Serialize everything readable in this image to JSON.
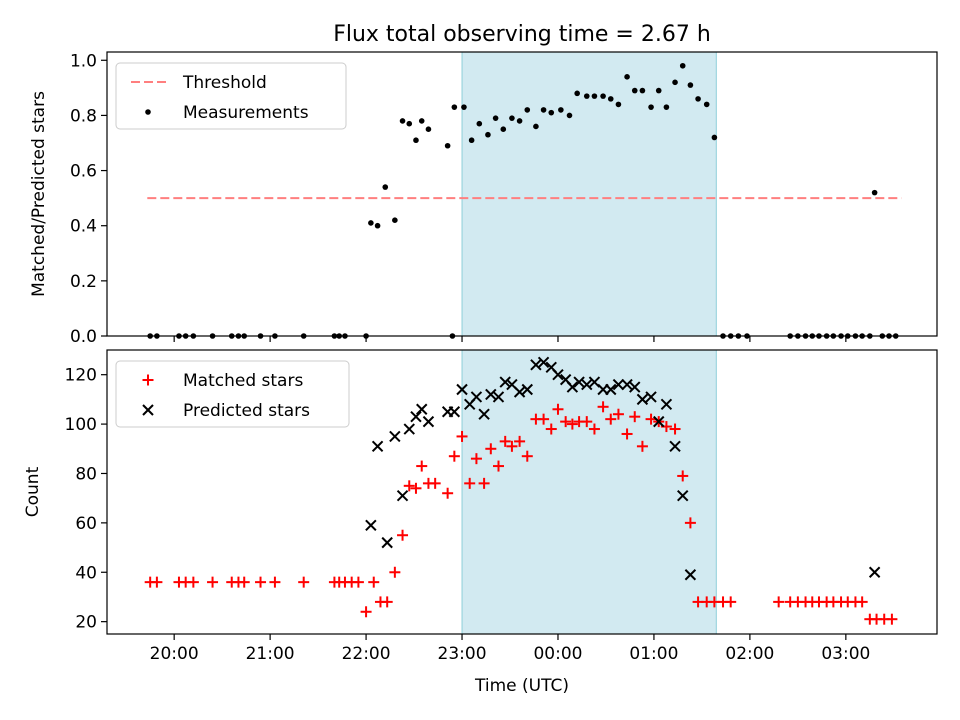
{
  "chart_data": {
    "type": "scatter",
    "title": "Flux total observing time = 2.67 h",
    "xlabel": "Time (UTC)",
    "x_unit": "hours relative to 00:00 UTC",
    "xlim": [
      -4.7,
      3.95
    ],
    "xticks": [
      -4,
      -3,
      -2,
      -1,
      0,
      1,
      2,
      3
    ],
    "xtick_labels": [
      "20:00",
      "21:00",
      "22:00",
      "23:00",
      "00:00",
      "01:00",
      "02:00",
      "03:00"
    ],
    "shaded_span": {
      "from": -1.0,
      "to": 1.65,
      "color": "#add8e6"
    },
    "panels": [
      {
        "ylabel": "Matched/Predicted stars",
        "ylim": [
          0,
          1.03
        ],
        "yticks": [
          0,
          0.2,
          0.4,
          0.6,
          0.8,
          1.0
        ],
        "ytick_labels": [
          "0.0",
          "0.2",
          "0.4",
          "0.6",
          "0.8",
          "1.0"
        ],
        "legend_position": "upper-left",
        "series": [
          {
            "name": "Threshold",
            "kind": "line",
            "style": "dashed",
            "color": "#ff7f7f",
            "x": [
              -4.28,
              3.58
            ],
            "y": [
              0.5,
              0.5
            ]
          },
          {
            "name": "Measurements",
            "kind": "scatter",
            "marker": "dot",
            "color": "#000000",
            "points": [
              [
                -4.25,
                0
              ],
              [
                -4.18,
                0
              ],
              [
                -3.95,
                0
              ],
              [
                -3.88,
                0
              ],
              [
                -3.8,
                0
              ],
              [
                -3.6,
                0
              ],
              [
                -3.4,
                0
              ],
              [
                -3.33,
                0
              ],
              [
                -3.27,
                0
              ],
              [
                -3.1,
                0
              ],
              [
                -2.95,
                0
              ],
              [
                -2.65,
                0
              ],
              [
                -2.33,
                0
              ],
              [
                -2.28,
                0
              ],
              [
                -2.22,
                0
              ],
              [
                -2.0,
                0
              ],
              [
                -1.95,
                0.41
              ],
              [
                -1.88,
                0.4
              ],
              [
                -1.8,
                0.54
              ],
              [
                -1.7,
                0.42
              ],
              [
                -1.62,
                0.78
              ],
              [
                -1.55,
                0.77
              ],
              [
                -1.48,
                0.71
              ],
              [
                -1.42,
                0.78
              ],
              [
                -1.35,
                0.75
              ],
              [
                -1.15,
                0.69
              ],
              [
                -1.08,
                0.83
              ],
              [
                -0.98,
                0.83
              ],
              [
                -0.9,
                0.71
              ],
              [
                -0.82,
                0.77
              ],
              [
                -0.73,
                0.73
              ],
              [
                -0.65,
                0.79
              ],
              [
                -0.57,
                0.75
              ],
              [
                -0.48,
                0.79
              ],
              [
                -0.4,
                0.78
              ],
              [
                -0.32,
                0.82
              ],
              [
                -0.23,
                0.76
              ],
              [
                -0.15,
                0.82
              ],
              [
                -0.07,
                0.81
              ],
              [
                0.03,
                0.82
              ],
              [
                0.12,
                0.8
              ],
              [
                0.2,
                0.88
              ],
              [
                0.3,
                0.87
              ],
              [
                0.38,
                0.87
              ],
              [
                0.47,
                0.87
              ],
              [
                0.55,
                0.86
              ],
              [
                0.63,
                0.84
              ],
              [
                0.72,
                0.94
              ],
              [
                0.8,
                0.89
              ],
              [
                0.88,
                0.89
              ],
              [
                0.97,
                0.83
              ],
              [
                1.05,
                0.89
              ],
              [
                1.13,
                0.83
              ],
              [
                1.22,
                0.92
              ],
              [
                1.3,
                0.98
              ],
              [
                1.38,
                0.91
              ],
              [
                1.46,
                0.86
              ],
              [
                1.55,
                0.84
              ],
              [
                1.63,
                0.72
              ],
              [
                -1.1,
                0
              ],
              [
                1.72,
                0
              ],
              [
                1.8,
                0
              ],
              [
                1.88,
                0
              ],
              [
                1.97,
                0
              ],
              [
                2.42,
                0
              ],
              [
                2.5,
                0
              ],
              [
                2.58,
                0
              ],
              [
                2.65,
                0
              ],
              [
                2.72,
                0
              ],
              [
                2.8,
                0
              ],
              [
                2.87,
                0
              ],
              [
                2.95,
                0
              ],
              [
                3.02,
                0
              ],
              [
                3.1,
                0
              ],
              [
                3.17,
                0
              ],
              [
                3.25,
                0
              ],
              [
                3.3,
                0.52
              ],
              [
                3.38,
                0
              ],
              [
                3.45,
                0
              ],
              [
                3.52,
                0
              ]
            ]
          }
        ]
      },
      {
        "ylabel": "Count",
        "ylim": [
          15,
          130
        ],
        "yticks": [
          20,
          40,
          60,
          80,
          100,
          120
        ],
        "ytick_labels": [
          "20",
          "40",
          "60",
          "80",
          "100",
          "120"
        ],
        "legend_position": "upper-left",
        "series": [
          {
            "name": "Matched stars",
            "kind": "scatter",
            "marker": "plus",
            "color": "#ff0000",
            "points": [
              [
                -4.25,
                36
              ],
              [
                -4.18,
                36
              ],
              [
                -3.95,
                36
              ],
              [
                -3.88,
                36
              ],
              [
                -3.8,
                36
              ],
              [
                -3.6,
                36
              ],
              [
                -3.4,
                36
              ],
              [
                -3.33,
                36
              ],
              [
                -3.27,
                36
              ],
              [
                -3.1,
                36
              ],
              [
                -2.95,
                36
              ],
              [
                -2.65,
                36
              ],
              [
                -2.33,
                36
              ],
              [
                -2.28,
                36
              ],
              [
                -2.22,
                36
              ],
              [
                -2.15,
                36
              ],
              [
                -2.08,
                36
              ],
              [
                -2.0,
                24
              ],
              [
                -1.92,
                36
              ],
              [
                -1.85,
                28
              ],
              [
                -1.78,
                28
              ],
              [
                -1.7,
                40
              ],
              [
                -1.62,
                55
              ],
              [
                -1.55,
                75
              ],
              [
                -1.48,
                74
              ],
              [
                -1.42,
                83
              ],
              [
                -1.35,
                76
              ],
              [
                -1.28,
                76
              ],
              [
                -1.15,
                72
              ],
              [
                -1.08,
                87
              ],
              [
                -1.0,
                95
              ],
              [
                -0.92,
                76
              ],
              [
                -0.85,
                86
              ],
              [
                -0.77,
                76
              ],
              [
                -0.7,
                90
              ],
              [
                -0.62,
                83
              ],
              [
                -0.55,
                93
              ],
              [
                -0.48,
                91
              ],
              [
                -0.4,
                93
              ],
              [
                -0.32,
                87
              ],
              [
                -0.23,
                102
              ],
              [
                -0.15,
                102
              ],
              [
                -0.07,
                98
              ],
              [
                0.0,
                106
              ],
              [
                0.08,
                101
              ],
              [
                0.15,
                100
              ],
              [
                0.22,
                101
              ],
              [
                0.3,
                101
              ],
              [
                0.38,
                98
              ],
              [
                0.47,
                107
              ],
              [
                0.55,
                102
              ],
              [
                0.63,
                104
              ],
              [
                0.72,
                96
              ],
              [
                0.8,
                103
              ],
              [
                0.88,
                91
              ],
              [
                0.97,
                102
              ],
              [
                1.05,
                101
              ],
              [
                1.13,
                99
              ],
              [
                1.22,
                98
              ],
              [
                1.3,
                79
              ],
              [
                1.38,
                60
              ],
              [
                1.46,
                28
              ],
              [
                1.55,
                28
              ],
              [
                1.63,
                28
              ],
              [
                1.72,
                28
              ],
              [
                1.8,
                28
              ],
              [
                2.3,
                28
              ],
              [
                2.42,
                28
              ],
              [
                2.5,
                28
              ],
              [
                2.58,
                28
              ],
              [
                2.65,
                28
              ],
              [
                2.72,
                28
              ],
              [
                2.8,
                28
              ],
              [
                2.87,
                28
              ],
              [
                2.95,
                28
              ],
              [
                3.02,
                28
              ],
              [
                3.1,
                28
              ],
              [
                3.17,
                28
              ],
              [
                3.25,
                21
              ],
              [
                3.32,
                21
              ],
              [
                3.4,
                21
              ],
              [
                3.48,
                21
              ]
            ]
          },
          {
            "name": "Predicted stars",
            "kind": "scatter",
            "marker": "x",
            "color": "#000000",
            "points": [
              [
                -1.95,
                59
              ],
              [
                -1.88,
                91
              ],
              [
                -1.78,
                52
              ],
              [
                -1.7,
                95
              ],
              [
                -1.62,
                71
              ],
              [
                -1.55,
                98
              ],
              [
                -1.48,
                103
              ],
              [
                -1.42,
                106
              ],
              [
                -1.35,
                101
              ],
              [
                -1.15,
                105
              ],
              [
                -1.08,
                105
              ],
              [
                -1.0,
                114
              ],
              [
                -0.92,
                108
              ],
              [
                -0.85,
                111
              ],
              [
                -0.77,
                104
              ],
              [
                -0.7,
                112
              ],
              [
                -0.62,
                111
              ],
              [
                -0.55,
                117
              ],
              [
                -0.48,
                116
              ],
              [
                -0.4,
                113
              ],
              [
                -0.32,
                114
              ],
              [
                -0.23,
                124
              ],
              [
                -0.15,
                125
              ],
              [
                -0.07,
                123
              ],
              [
                0.0,
                120
              ],
              [
                0.08,
                118
              ],
              [
                0.15,
                115
              ],
              [
                0.22,
                117
              ],
              [
                0.3,
                116
              ],
              [
                0.38,
                117
              ],
              [
                0.47,
                114
              ],
              [
                0.55,
                114
              ],
              [
                0.63,
                116
              ],
              [
                0.72,
                116
              ],
              [
                0.8,
                115
              ],
              [
                0.88,
                110
              ],
              [
                0.97,
                111
              ],
              [
                1.05,
                101
              ],
              [
                1.13,
                108
              ],
              [
                1.22,
                91
              ],
              [
                1.3,
                71
              ],
              [
                1.38,
                39
              ],
              [
                3.3,
                40
              ]
            ]
          }
        ]
      }
    ]
  }
}
